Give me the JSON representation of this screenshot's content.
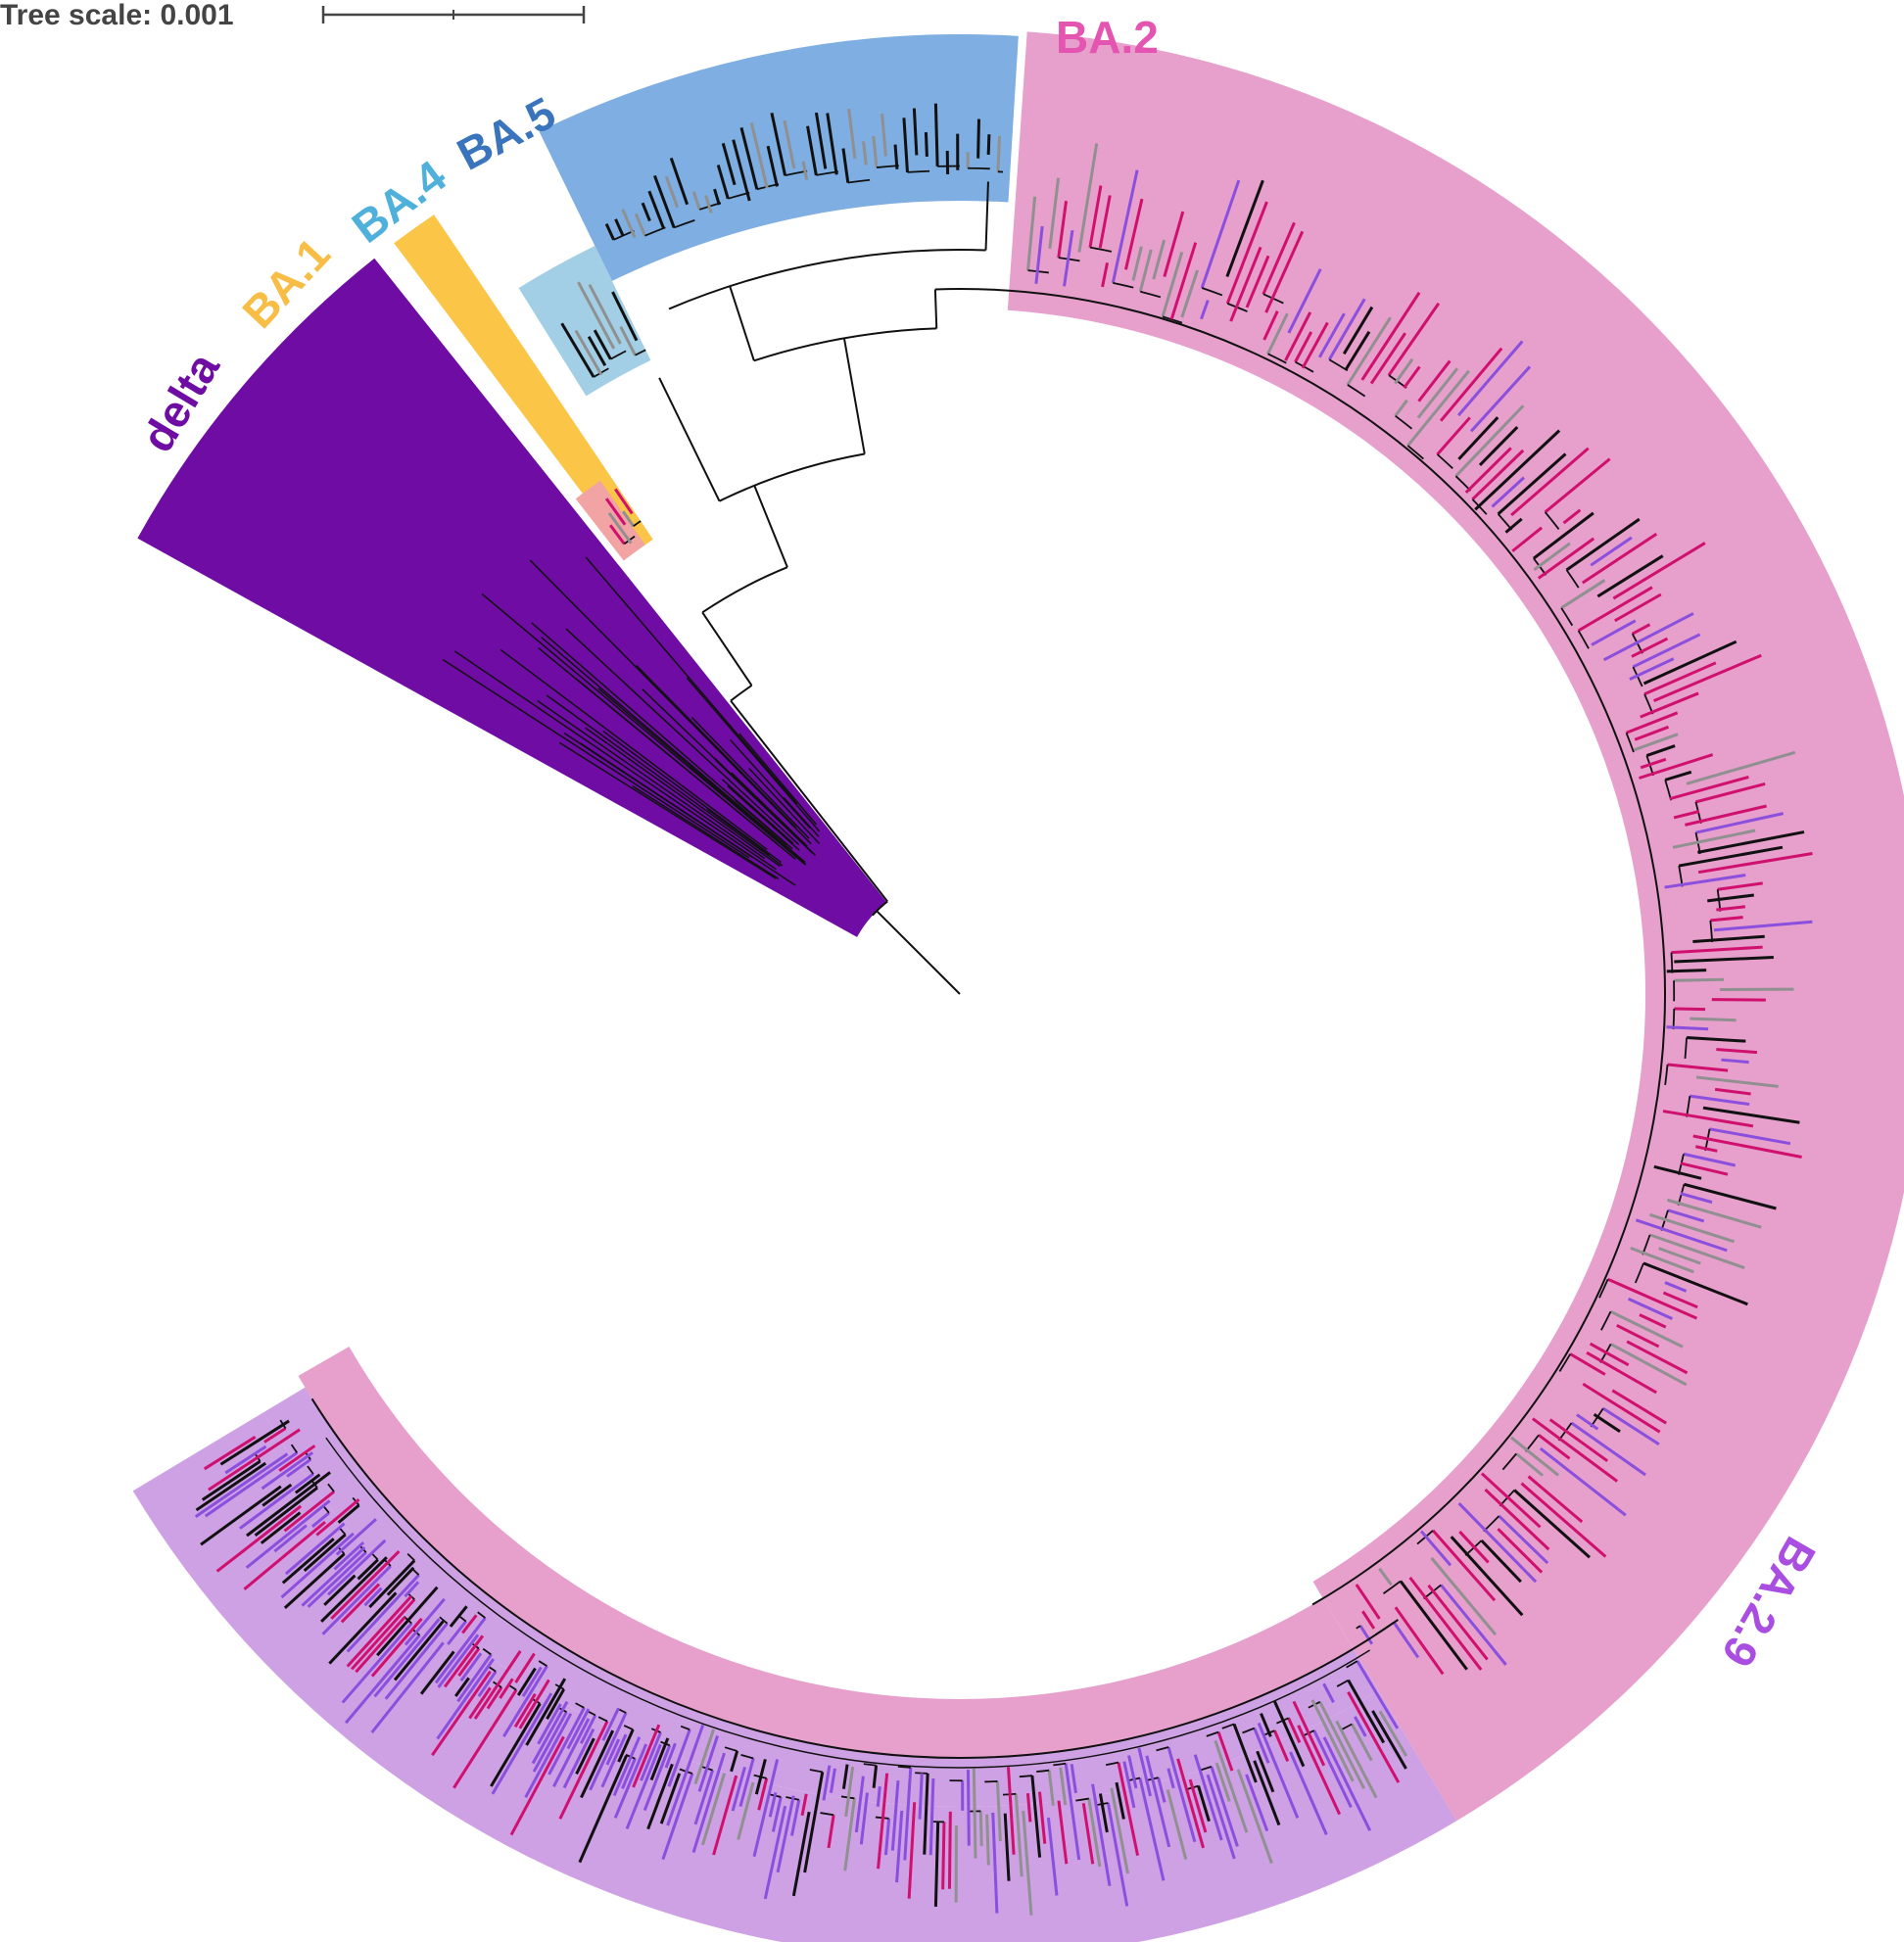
{
  "scale_bar": {
    "label": "Tree scale: 0.001",
    "color": "#444444"
  },
  "clades": [
    {
      "name": "delta",
      "label": "delta",
      "color": "#6e0ca3",
      "label_color": "#6e0ca3"
    },
    {
      "name": "BA.1",
      "label": "BA.1",
      "color": "#fbc547",
      "label_color": "#f7bd45"
    },
    {
      "name": "BA.4",
      "label": "BA.4",
      "color": "#a2cfe5",
      "label_color": "#4fb0dc"
    },
    {
      "name": "BA.5",
      "label": "BA.5",
      "color": "#7eaee2",
      "label_color": "#3a74bd"
    },
    {
      "name": "BA.2",
      "label": "BA.2",
      "color": "#e6a0cb",
      "label_color": "#e455b1"
    },
    {
      "name": "BA.2.9",
      "label": "BA.2.9",
      "color": "#cea1e5",
      "label_color": "#a94ee0"
    }
  ],
  "tip_colors": {
    "magenta": "#d0106e",
    "purple": "#8b4fdd",
    "grey": "#909090",
    "black": "#111111"
  }
}
